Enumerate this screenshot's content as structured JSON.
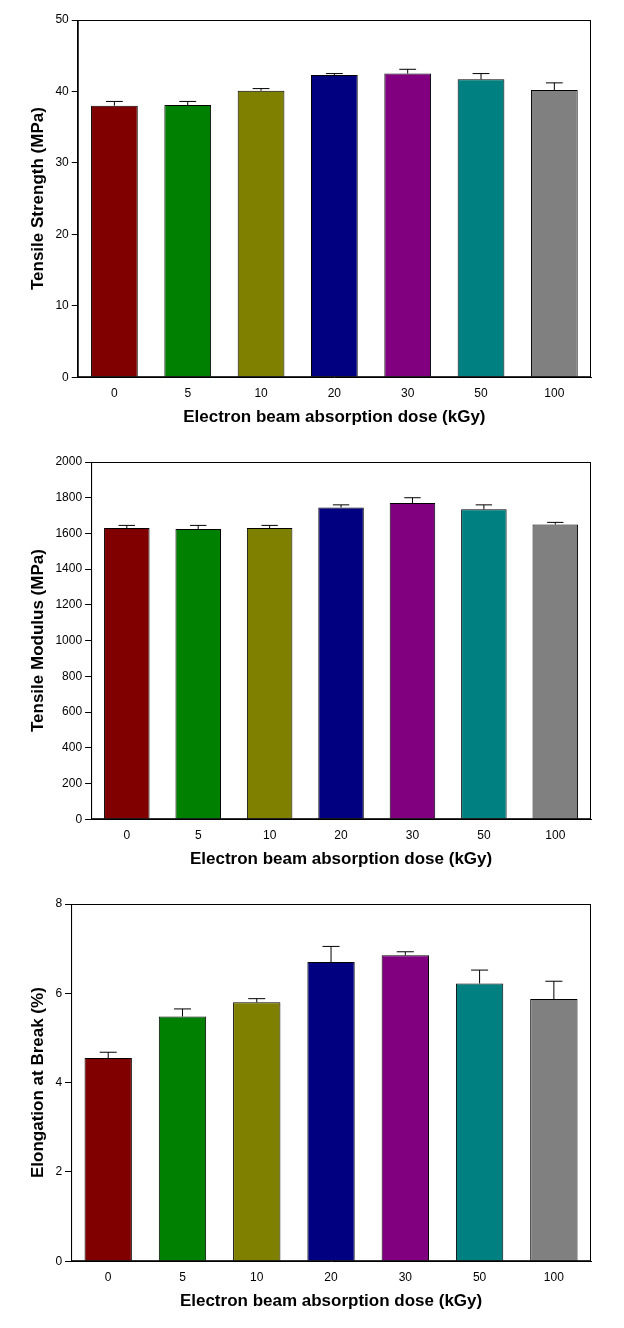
{
  "chart_data": [
    {
      "type": "bar",
      "xlabel": "Electron beam absorption dose (kGy)",
      "ylabel": "Tensile Strength (MPa)",
      "categories": [
        "0",
        "5",
        "10",
        "20",
        "30",
        "50",
        "100"
      ],
      "values": [
        38.0,
        38.1,
        40.1,
        42.3,
        42.5,
        41.7,
        40.2
      ],
      "errors": [
        0.6,
        0.5,
        0.3,
        0.2,
        0.6,
        0.8,
        1.0
      ],
      "colors": [
        "#800000",
        "#008000",
        "#808000",
        "#000080",
        "#800080",
        "#008080",
        "#808080"
      ],
      "ylim": [
        0,
        50
      ],
      "yticks": [
        0,
        10,
        20,
        30,
        40,
        50
      ],
      "grid": false
    },
    {
      "type": "bar",
      "xlabel": "Electron beam absorption dose (kGy)",
      "ylabel": "Tensile Modulus (MPa)",
      "categories": [
        "0",
        "5",
        "10",
        "20",
        "30",
        "50",
        "100"
      ],
      "values": [
        1630,
        1625,
        1630,
        1745,
        1770,
        1735,
        1650
      ],
      "errors": [
        15,
        20,
        15,
        15,
        30,
        25,
        12
      ],
      "colors": [
        "#800000",
        "#008000",
        "#808000",
        "#000080",
        "#800080",
        "#008080",
        "#808080"
      ],
      "ylim": [
        0,
        2000
      ],
      "yticks": [
        0,
        200,
        400,
        600,
        800,
        1000,
        1200,
        1400,
        1600,
        1800,
        2000
      ],
      "grid": false
    },
    {
      "type": "bar",
      "xlabel": "Electron beam absorption dose (kGy)",
      "ylabel": "Elongation at Break (%)",
      "categories": [
        "0",
        "5",
        "10",
        "20",
        "30",
        "50",
        "100"
      ],
      "values": [
        4.55,
        5.48,
        5.8,
        6.7,
        6.85,
        6.22,
        5.87
      ],
      "errors": [
        0.13,
        0.17,
        0.08,
        0.35,
        0.08,
        0.3,
        0.4
      ],
      "colors": [
        "#800000",
        "#008000",
        "#808000",
        "#000080",
        "#800080",
        "#008080",
        "#808080"
      ],
      "ylim": [
        0,
        8
      ],
      "yticks": [
        0,
        2,
        4,
        6,
        8
      ],
      "grid": false
    }
  ]
}
